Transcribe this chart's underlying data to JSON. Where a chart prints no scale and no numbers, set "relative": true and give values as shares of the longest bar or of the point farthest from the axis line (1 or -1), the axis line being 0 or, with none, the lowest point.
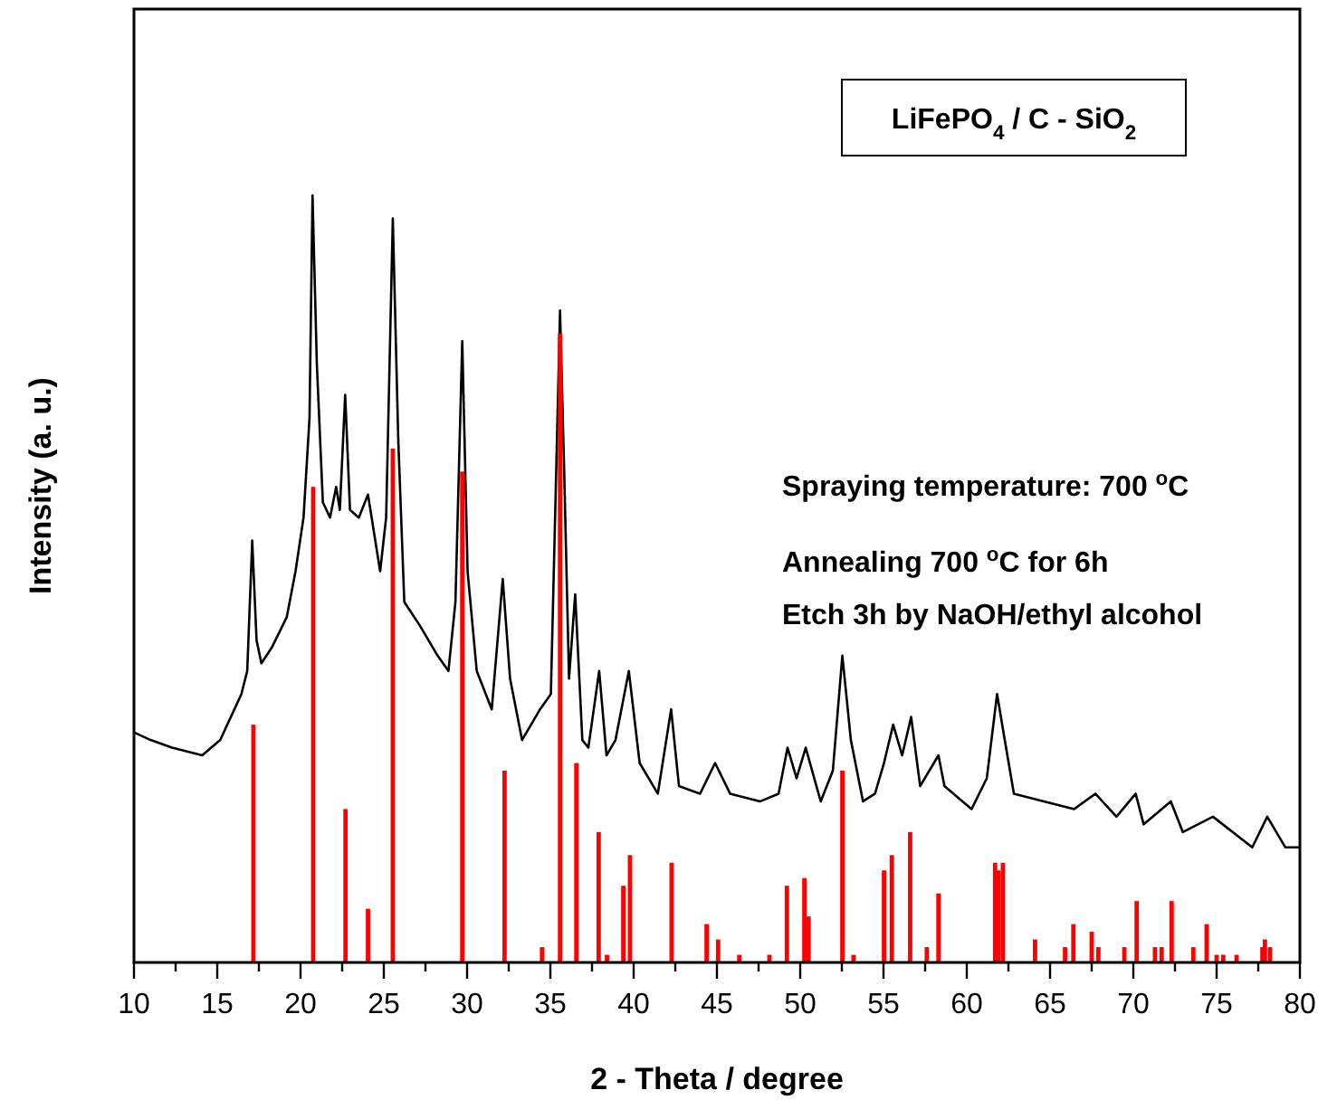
{
  "chart_data": {
    "type": "line",
    "relative": true,
    "xlabel": "2 - Theta / degree",
    "ylabel": "Intensity (a. u.)",
    "xlim": [
      10,
      80
    ],
    "xticks": [
      10,
      {
        "value": 12.5,
        "label": null
      },
      15,
      {
        "value": 17.5,
        "label": null
      },
      20,
      {
        "value": 22.5,
        "label": null
      },
      25,
      {
        "value": 27.5,
        "label": null
      },
      30,
      {
        "value": 32.5,
        "label": null
      },
      35,
      {
        "value": 37.5,
        "label": null
      },
      40,
      {
        "value": 42.5,
        "label": null
      },
      45,
      {
        "value": 47.5,
        "label": null
      },
      50,
      {
        "value": 52.5,
        "label": null
      },
      55,
      {
        "value": 57.5,
        "label": null
      },
      60,
      {
        "value": 62.5,
        "label": null
      },
      65,
      {
        "value": 67.5,
        "label": null
      },
      70,
      {
        "value": 72.5,
        "label": null
      },
      75,
      {
        "value": 77.5,
        "label": null
      },
      80
    ],
    "grid": false,
    "marker": "none",
    "line_style": "solid",
    "annotations": [
      "LiFePO$_{4}$ / C - SiO$_{2}$",
      "Spraying temperature: 700 $^{o}$C",
      "Annealing 700 $^{o}$C for 6h",
      "Etch 3h by NaOH/ethyl alcohol"
    ],
    "series": [
      {
        "color": "#000000",
        "x": [
          10,
          11,
          12.28,
          14.1,
          15.18,
          16.45,
          16.8,
          17.1,
          17.36,
          17.65,
          18.26,
          19.17,
          19.7,
          20.18,
          20.54,
          20.72,
          20.98,
          21.34,
          21.77,
          22.14,
          22.36,
          22.68,
          22.97,
          23.5,
          24.05,
          24.78,
          25.14,
          25.54,
          25.87,
          26.23,
          27.14,
          28.23,
          28.88,
          29.3,
          29.71,
          30.03,
          30.58,
          31.48,
          32.14,
          32.58,
          33.3,
          34.38,
          35.03,
          35.58,
          35.83,
          36.12,
          36.49,
          36.92,
          37.28,
          37.93,
          38.37,
          38.91,
          39.71,
          40.36,
          41.45,
          42.25,
          42.72,
          43.99,
          44.89,
          45.79,
          47.6,
          48.7,
          49.24,
          49.78,
          50.33,
          51.23,
          51.96,
          52.53,
          53.04,
          53.77,
          54.49,
          55.03,
          55.58,
          56.12,
          56.66,
          57.2,
          58.3,
          58.66,
          60.29,
          61.2,
          61.82,
          62.28,
          62.83,
          64.64,
          66.45,
          67.72,
          68.99,
          70.14,
          70.62,
          72.25,
          72.97,
          74.78,
          77.14,
          78.04,
          79.13,
          80
        ],
        "values": [
          0.3,
          0.29,
          0.28,
          0.27,
          0.29,
          0.35,
          0.38,
          0.55,
          0.42,
          0.39,
          0.41,
          0.45,
          0.51,
          0.58,
          0.71,
          1,
          0.78,
          0.6,
          0.58,
          0.62,
          0.59,
          0.74,
          0.59,
          0.58,
          0.61,
          0.51,
          0.58,
          0.97,
          0.68,
          0.47,
          0.44,
          0.4,
          0.38,
          0.47,
          0.81,
          0.51,
          0.38,
          0.33,
          0.5,
          0.37,
          0.29,
          0.33,
          0.35,
          0.85,
          0.64,
          0.37,
          0.48,
          0.29,
          0.28,
          0.38,
          0.27,
          0.29,
          0.38,
          0.26,
          0.22,
          0.33,
          0.23,
          0.22,
          0.26,
          0.22,
          0.21,
          0.22,
          0.28,
          0.24,
          0.28,
          0.21,
          0.25,
          0.4,
          0.29,
          0.21,
          0.22,
          0.26,
          0.31,
          0.27,
          0.32,
          0.23,
          0.27,
          0.23,
          0.2,
          0.24,
          0.35,
          0.29,
          0.22,
          0.21,
          0.2,
          0.22,
          0.19,
          0.22,
          0.18,
          0.21,
          0.17,
          0.19,
          0.15,
          0.19,
          0.15,
          0.15
        ]
      },
      {
        "type": "bar",
        "color": "#ff0000",
        "x": [
          17.17,
          20.76,
          22.7,
          24.05,
          25.54,
          29.71,
          32.25,
          34.5,
          35.58,
          36.56,
          37.9,
          38.4,
          39.38,
          39.78,
          42.28,
          44.38,
          45.07,
          46.34,
          48.15,
          49.2,
          50.25,
          50.5,
          52.53,
          53.2,
          55.03,
          55.5,
          56.6,
          57.6,
          58.3,
          61.7,
          61.9,
          62.17,
          64.1,
          65.9,
          66.4,
          67.5,
          67.9,
          69.46,
          70.2,
          71.3,
          71.7,
          72.3,
          73.6,
          74.4,
          75.0,
          75.4,
          76.2,
          77.75,
          77.9,
          78.2
        ],
        "values": [
          0.31,
          0.62,
          0.2,
          0.07,
          0.67,
          0.64,
          0.25,
          0.02,
          0.82,
          0.26,
          0.17,
          0.01,
          0.1,
          0.14,
          0.13,
          0.05,
          0.03,
          0.01,
          0.01,
          0.1,
          0.11,
          0.06,
          0.25,
          0.01,
          0.12,
          0.14,
          0.17,
          0.02,
          0.09,
          0.13,
          0.12,
          0.13,
          0.03,
          0.02,
          0.05,
          0.04,
          0.02,
          0.02,
          0.08,
          0.02,
          0.02,
          0.08,
          0.02,
          0.05,
          0.01,
          0.01,
          0.01,
          0.02,
          0.03,
          0.02
        ]
      }
    ]
  }
}
